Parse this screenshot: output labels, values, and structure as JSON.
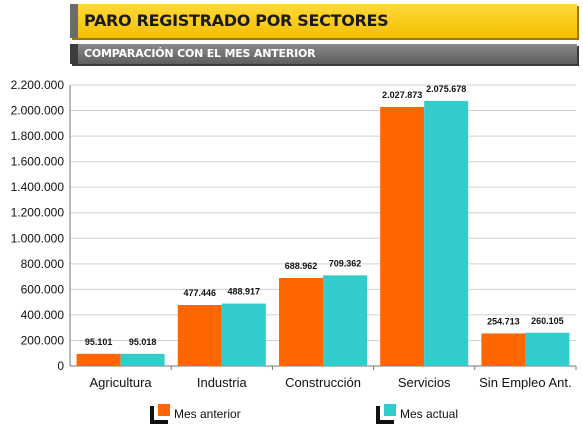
{
  "header": {
    "title": "PARO REGISTRADO POR SECTORES",
    "subtitle": "COMPARACIÓN CON EL MES ANTERIOR"
  },
  "colors": {
    "title_bg": "#f5c000",
    "subtitle_bg": "#6e6e6e",
    "series_1": "#ff6600",
    "series_2": "#33cccc"
  },
  "chart_data": {
    "type": "bar",
    "categories": [
      "Agricultura",
      "Industria",
      "Construcción",
      "Servicios",
      "Sin Empleo Ant."
    ],
    "series": [
      {
        "name": "Mes anterior",
        "values": [
          95101,
          477446,
          688962,
          2027873,
          254713
        ],
        "labels": [
          "95.101",
          "477.446",
          "688.962",
          "2.027.873",
          "254.713"
        ]
      },
      {
        "name": "Mes actual",
        "values": [
          95018,
          488917,
          709362,
          2075678,
          260105
        ],
        "labels": [
          "95.018",
          "488.917",
          "709.362",
          "2.075.678",
          "260.105"
        ]
      }
    ],
    "ylim": [
      0,
      2200000
    ],
    "yticks": [
      0,
      200000,
      400000,
      600000,
      800000,
      1000000,
      1200000,
      1400000,
      1600000,
      1800000,
      2000000,
      2200000
    ],
    "ytick_labels": [
      "0",
      "200.000",
      "400.000",
      "600.000",
      "800.000",
      "1.000.000",
      "1.200.000",
      "1.400.000",
      "1.600.000",
      "1.800.000",
      "2.000.000",
      "2.200.000"
    ],
    "grid": true,
    "legend_position": "bottom",
    "title": "PARO REGISTRADO POR SECTORES",
    "subtitle": "COMPARACIÓN CON EL MES ANTERIOR"
  }
}
